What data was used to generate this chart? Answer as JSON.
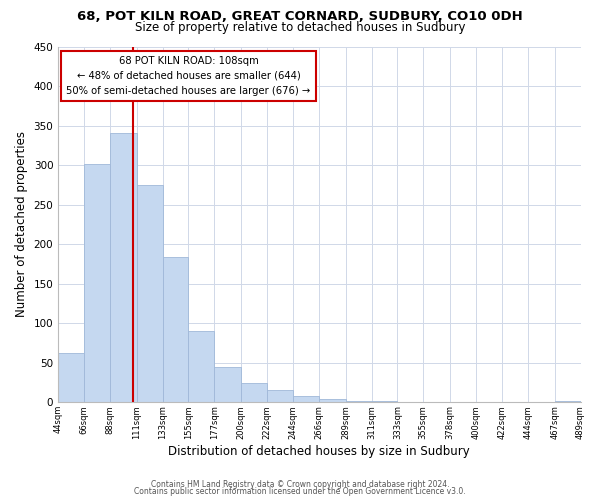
{
  "title": "68, POT KILN ROAD, GREAT CORNARD, SUDBURY, CO10 0DH",
  "subtitle": "Size of property relative to detached houses in Sudbury",
  "xlabel": "Distribution of detached houses by size in Sudbury",
  "ylabel": "Number of detached properties",
  "footnote1": "Contains HM Land Registry data © Crown copyright and database right 2024.",
  "footnote2": "Contains public sector information licensed under the Open Government Licence v3.0.",
  "bar_edges": [
    44,
    66,
    88,
    111,
    133,
    155,
    177,
    200,
    222,
    244,
    266,
    289,
    311,
    333,
    355,
    378,
    400,
    422,
    444,
    467,
    489
  ],
  "bar_heights": [
    62,
    301,
    341,
    275,
    184,
    90,
    45,
    24,
    15,
    8,
    4,
    2,
    1,
    0,
    0,
    0,
    0,
    0,
    0,
    2
  ],
  "bar_color": "#c5d8f0",
  "bar_edge_color": "#a0b8d8",
  "ylim": [
    0,
    450
  ],
  "yticks": [
    0,
    50,
    100,
    150,
    200,
    250,
    300,
    350,
    400,
    450
  ],
  "vline_x": 108,
  "vline_color": "#cc0000",
  "property_label": "68 POT KILN ROAD: 108sqm",
  "annotation_line1": "← 48% of detached houses are smaller (644)",
  "annotation_line2": "50% of semi-detached houses are larger (676) →",
  "tick_labels": [
    "44sqm",
    "66sqm",
    "88sqm",
    "111sqm",
    "133sqm",
    "155sqm",
    "177sqm",
    "200sqm",
    "222sqm",
    "244sqm",
    "266sqm",
    "289sqm",
    "311sqm",
    "333sqm",
    "355sqm",
    "378sqm",
    "400sqm",
    "422sqm",
    "444sqm",
    "467sqm",
    "489sqm"
  ]
}
